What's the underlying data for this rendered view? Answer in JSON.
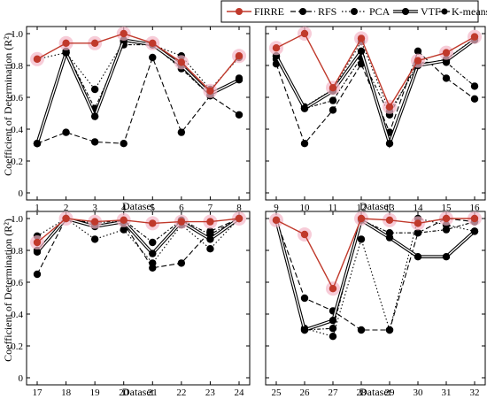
{
  "chart_data": {
    "type": "line",
    "ylabel": "Coefficient of Determination (R²)",
    "xlabel": "Dataset",
    "ylim": [
      0,
      1.0
    ],
    "yticks": [
      "0",
      "0.2",
      "0.4",
      "0.6",
      "0.8",
      "1.0"
    ],
    "grid": false,
    "legend_position": "top",
    "series_names": [
      "FIRRE",
      "RFS",
      "PCA",
      "VTF",
      "K-means"
    ],
    "colors": {
      "FIRRE": "#c0392b",
      "others": "#000000",
      "halo": "#f4b6c8"
    },
    "panels": [
      {
        "x": [
          1,
          2,
          3,
          4,
          5,
          6,
          7,
          8
        ],
        "series": [
          {
            "name": "FIRRE",
            "values": [
              0.84,
              0.94,
              0.94,
              1.0,
              0.94,
              0.82,
              0.64,
              0.86
            ]
          },
          {
            "name": "RFS",
            "values": [
              0.31,
              0.38,
              0.32,
              0.31,
              0.85,
              0.38,
              0.61,
              0.49
            ]
          },
          {
            "name": "PCA",
            "values": [
              0.84,
              0.88,
              0.65,
              0.95,
              0.93,
              0.86,
              0.65,
              0.85
            ]
          },
          {
            "name": "VTF",
            "values": [
              0.31,
              0.88,
              0.48,
              0.96,
              0.93,
              0.8,
              0.62,
              0.71
            ]
          },
          {
            "name": "K-means",
            "values": [
              0.31,
              0.89,
              0.53,
              0.93,
              0.93,
              0.78,
              0.61,
              0.72
            ]
          }
        ]
      },
      {
        "x": [
          9,
          10,
          11,
          12,
          13,
          14,
          15,
          16
        ],
        "series": [
          {
            "name": "FIRRE",
            "values": [
              0.91,
              1.0,
              0.66,
              0.97,
              0.54,
              0.83,
              0.88,
              0.98
            ]
          },
          {
            "name": "RFS",
            "values": [
              0.81,
              0.31,
              0.52,
              0.81,
              0.38,
              0.89,
              0.72,
              0.59
            ]
          },
          {
            "name": "PCA",
            "values": [
              0.86,
              0.54,
              0.65,
              0.95,
              0.51,
              0.8,
              0.84,
              0.97
            ]
          },
          {
            "name": "VTF",
            "values": [
              0.86,
              0.53,
              0.64,
              0.89,
              0.31,
              0.8,
              0.83,
              0.96
            ]
          },
          {
            "name": "K-means",
            "values": [
              0.84,
              0.53,
              0.58,
              0.85,
              0.49,
              0.82,
              0.82,
              0.67
            ]
          }
        ]
      },
      {
        "x": [
          17,
          18,
          19,
          20,
          21,
          22,
          23,
          24
        ],
        "series": [
          {
            "name": "FIRRE",
            "values": [
              0.85,
              1.0,
              0.98,
              0.99,
              0.97,
              0.98,
              0.98,
              1.0
            ]
          },
          {
            "name": "RFS",
            "values": [
              0.65,
              1.0,
              0.96,
              0.97,
              0.69,
              0.72,
              0.92,
              1.0
            ]
          },
          {
            "name": "PCA",
            "values": [
              0.89,
              1.0,
              0.87,
              0.93,
              0.72,
              0.96,
              0.81,
              1.0
            ]
          },
          {
            "name": "VTF",
            "values": [
              0.79,
              1.0,
              0.95,
              0.98,
              0.78,
              0.98,
              0.87,
              1.0
            ]
          },
          {
            "name": "K-means",
            "values": [
              0.8,
              1.0,
              0.97,
              0.99,
              0.85,
              0.99,
              0.9,
              1.0
            ]
          }
        ]
      },
      {
        "x": [
          25,
          26,
          27,
          28,
          29,
          30,
          31,
          32
        ],
        "series": [
          {
            "name": "FIRRE",
            "values": [
              0.99,
              0.9,
              0.56,
              1.0,
              0.99,
              0.97,
              1.0,
              1.0
            ]
          },
          {
            "name": "RFS",
            "values": [
              0.99,
              0.5,
              0.42,
              0.3,
              0.3,
              0.91,
              1.0,
              0.98
            ]
          },
          {
            "name": "PCA",
            "values": [
              0.99,
              0.31,
              0.26,
              0.87,
              0.3,
              1.0,
              0.96,
              0.92
            ]
          },
          {
            "name": "VTF",
            "values": [
              0.99,
              0.3,
              0.36,
              0.99,
              0.88,
              0.76,
              0.76,
              0.92
            ]
          },
          {
            "name": "K-means",
            "values": [
              0.99,
              0.3,
              0.31,
              0.99,
              0.91,
              0.91,
              0.93,
              0.98
            ]
          }
        ]
      }
    ]
  }
}
